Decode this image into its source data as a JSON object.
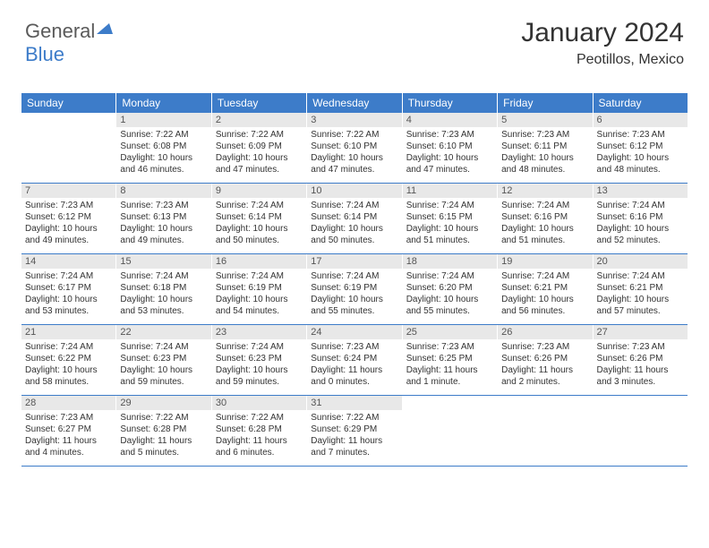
{
  "brand": {
    "part1": "General",
    "part2": "Blue"
  },
  "header": {
    "title": "January 2024",
    "location": "Peotillos, Mexico"
  },
  "colors": {
    "header_bg": "#3d7cc9",
    "header_text": "#ffffff",
    "daynum_bg": "#e8e8e8",
    "daynum_text": "#555555",
    "body_text": "#333333",
    "border": "#3d7cc9"
  },
  "dayNames": [
    "Sunday",
    "Monday",
    "Tuesday",
    "Wednesday",
    "Thursday",
    "Friday",
    "Saturday"
  ],
  "weeks": [
    [
      {
        "day": "",
        "empty": true
      },
      {
        "day": "1",
        "sunrise": "7:22 AM",
        "sunset": "6:08 PM",
        "daylight": "10 hours and 46 minutes."
      },
      {
        "day": "2",
        "sunrise": "7:22 AM",
        "sunset": "6:09 PM",
        "daylight": "10 hours and 47 minutes."
      },
      {
        "day": "3",
        "sunrise": "7:22 AM",
        "sunset": "6:10 PM",
        "daylight": "10 hours and 47 minutes."
      },
      {
        "day": "4",
        "sunrise": "7:23 AM",
        "sunset": "6:10 PM",
        "daylight": "10 hours and 47 minutes."
      },
      {
        "day": "5",
        "sunrise": "7:23 AM",
        "sunset": "6:11 PM",
        "daylight": "10 hours and 48 minutes."
      },
      {
        "day": "6",
        "sunrise": "7:23 AM",
        "sunset": "6:12 PM",
        "daylight": "10 hours and 48 minutes."
      }
    ],
    [
      {
        "day": "7",
        "sunrise": "7:23 AM",
        "sunset": "6:12 PM",
        "daylight": "10 hours and 49 minutes."
      },
      {
        "day": "8",
        "sunrise": "7:23 AM",
        "sunset": "6:13 PM",
        "daylight": "10 hours and 49 minutes."
      },
      {
        "day": "9",
        "sunrise": "7:24 AM",
        "sunset": "6:14 PM",
        "daylight": "10 hours and 50 minutes."
      },
      {
        "day": "10",
        "sunrise": "7:24 AM",
        "sunset": "6:14 PM",
        "daylight": "10 hours and 50 minutes."
      },
      {
        "day": "11",
        "sunrise": "7:24 AM",
        "sunset": "6:15 PM",
        "daylight": "10 hours and 51 minutes."
      },
      {
        "day": "12",
        "sunrise": "7:24 AM",
        "sunset": "6:16 PM",
        "daylight": "10 hours and 51 minutes."
      },
      {
        "day": "13",
        "sunrise": "7:24 AM",
        "sunset": "6:16 PM",
        "daylight": "10 hours and 52 minutes."
      }
    ],
    [
      {
        "day": "14",
        "sunrise": "7:24 AM",
        "sunset": "6:17 PM",
        "daylight": "10 hours and 53 minutes."
      },
      {
        "day": "15",
        "sunrise": "7:24 AM",
        "sunset": "6:18 PM",
        "daylight": "10 hours and 53 minutes."
      },
      {
        "day": "16",
        "sunrise": "7:24 AM",
        "sunset": "6:19 PM",
        "daylight": "10 hours and 54 minutes."
      },
      {
        "day": "17",
        "sunrise": "7:24 AM",
        "sunset": "6:19 PM",
        "daylight": "10 hours and 55 minutes."
      },
      {
        "day": "18",
        "sunrise": "7:24 AM",
        "sunset": "6:20 PM",
        "daylight": "10 hours and 55 minutes."
      },
      {
        "day": "19",
        "sunrise": "7:24 AM",
        "sunset": "6:21 PM",
        "daylight": "10 hours and 56 minutes."
      },
      {
        "day": "20",
        "sunrise": "7:24 AM",
        "sunset": "6:21 PM",
        "daylight": "10 hours and 57 minutes."
      }
    ],
    [
      {
        "day": "21",
        "sunrise": "7:24 AM",
        "sunset": "6:22 PM",
        "daylight": "10 hours and 58 minutes."
      },
      {
        "day": "22",
        "sunrise": "7:24 AM",
        "sunset": "6:23 PM",
        "daylight": "10 hours and 59 minutes."
      },
      {
        "day": "23",
        "sunrise": "7:24 AM",
        "sunset": "6:23 PM",
        "daylight": "10 hours and 59 minutes."
      },
      {
        "day": "24",
        "sunrise": "7:23 AM",
        "sunset": "6:24 PM",
        "daylight": "11 hours and 0 minutes."
      },
      {
        "day": "25",
        "sunrise": "7:23 AM",
        "sunset": "6:25 PM",
        "daylight": "11 hours and 1 minute."
      },
      {
        "day": "26",
        "sunrise": "7:23 AM",
        "sunset": "6:26 PM",
        "daylight": "11 hours and 2 minutes."
      },
      {
        "day": "27",
        "sunrise": "7:23 AM",
        "sunset": "6:26 PM",
        "daylight": "11 hours and 3 minutes."
      }
    ],
    [
      {
        "day": "28",
        "sunrise": "7:23 AM",
        "sunset": "6:27 PM",
        "daylight": "11 hours and 4 minutes."
      },
      {
        "day": "29",
        "sunrise": "7:22 AM",
        "sunset": "6:28 PM",
        "daylight": "11 hours and 5 minutes."
      },
      {
        "day": "30",
        "sunrise": "7:22 AM",
        "sunset": "6:28 PM",
        "daylight": "11 hours and 6 minutes."
      },
      {
        "day": "31",
        "sunrise": "7:22 AM",
        "sunset": "6:29 PM",
        "daylight": "11 hours and 7 minutes."
      },
      {
        "day": "",
        "empty": true
      },
      {
        "day": "",
        "empty": true
      },
      {
        "day": "",
        "empty": true
      }
    ]
  ],
  "labels": {
    "sunrise": "Sunrise:",
    "sunset": "Sunset:",
    "daylight": "Daylight:"
  }
}
